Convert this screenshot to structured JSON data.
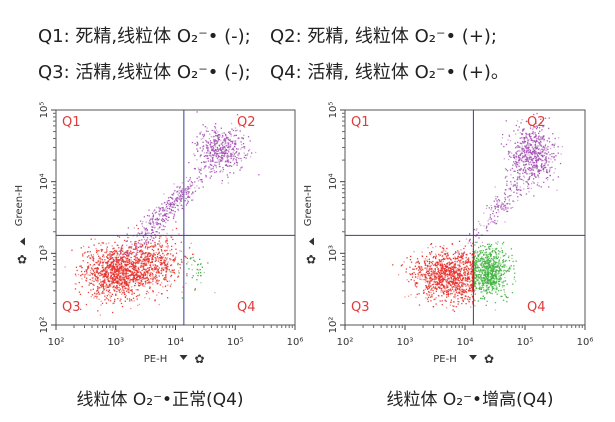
{
  "legend_lines": [
    {
      "q1": "Q1: 死精,线粒体 O₂⁻•  (-);",
      "q2": "Q2: 死精, 线粒体 O₂⁻•  (+);"
    },
    {
      "q3": "Q3: 活精,线粒体 O₂⁻•  (-);",
      "q4": "Q4: 活精, 线粒体 O₂⁻•  (+)。"
    }
  ],
  "chart_data": [
    {
      "type": "scatter",
      "caption": "线粒体 O₂⁻•正常(Q4)",
      "xlabel": "PE-H",
      "ylabel": "Green-H",
      "x_scale": "log",
      "y_scale": "log",
      "xlim": [
        100,
        1000000
      ],
      "ylim": [
        100,
        100000
      ],
      "x_ticks": [
        "10²",
        "10³",
        "10⁴",
        "10⁵",
        "10⁶"
      ],
      "y_ticks": [
        "10²",
        "10³",
        "10⁴",
        "10⁵"
      ],
      "gates": {
        "x": 13800,
        "y": 1780
      },
      "quadrant_labels": [
        "Q1",
        "Q2",
        "Q3",
        "Q4"
      ],
      "populations": [
        {
          "color": "#e8302a",
          "center": [
            1100,
            560
          ],
          "spread_log": [
            0.3,
            0.18
          ],
          "count": 1300
        },
        {
          "color": "#e8302a",
          "center": [
            5000,
            800
          ],
          "spread_log": [
            0.22,
            0.18
          ],
          "count": 350
        },
        {
          "color": "#a34fb3",
          "center": [
            56000,
            28000
          ],
          "spread_log": [
            0.2,
            0.15
          ],
          "count": 450
        },
        {
          "color": "#a34fb3",
          "center": [
            7000,
            4000
          ],
          "spread_log": [
            0.35,
            0.3
          ],
          "count": 400,
          "diagonal": true
        },
        {
          "color": "#3aa83a",
          "center": [
            20000,
            630
          ],
          "spread_log": [
            0.15,
            0.15
          ],
          "count": 40
        }
      ]
    },
    {
      "type": "scatter",
      "caption": "线粒体 O₂⁻•增高(Q4)",
      "xlabel": "PE-H",
      "ylabel": "Green-H",
      "x_scale": "log",
      "y_scale": "log",
      "xlim": [
        100,
        1000000
      ],
      "ylim": [
        100,
        100000
      ],
      "x_ticks": [
        "10²",
        "10³",
        "10⁴",
        "10⁵",
        "10⁶"
      ],
      "y_ticks": [
        "10²",
        "10³",
        "10⁴",
        "10⁵"
      ],
      "gates": {
        "x": 13800,
        "y": 1780
      },
      "quadrant_labels": [
        "Q1",
        "Q2",
        "Q3",
        "Q4"
      ],
      "populations": [
        {
          "color": "#e8302a",
          "center": [
            5600,
            500
          ],
          "spread_log": [
            0.32,
            0.17
          ],
          "count": 1200,
          "max_x": 13800
        },
        {
          "color": "#3fb33f",
          "center": [
            25000,
            560
          ],
          "spread_log": [
            0.16,
            0.17
          ],
          "count": 750,
          "min_x": 13800
        },
        {
          "color": "#a34fb3",
          "center": [
            125000,
            25000
          ],
          "spread_log": [
            0.2,
            0.2
          ],
          "count": 600
        },
        {
          "color": "#a34fb3",
          "center": [
            40000,
            5000
          ],
          "spread_log": [
            0.3,
            0.3
          ],
          "count": 180,
          "diagonal": true
        }
      ]
    }
  ]
}
